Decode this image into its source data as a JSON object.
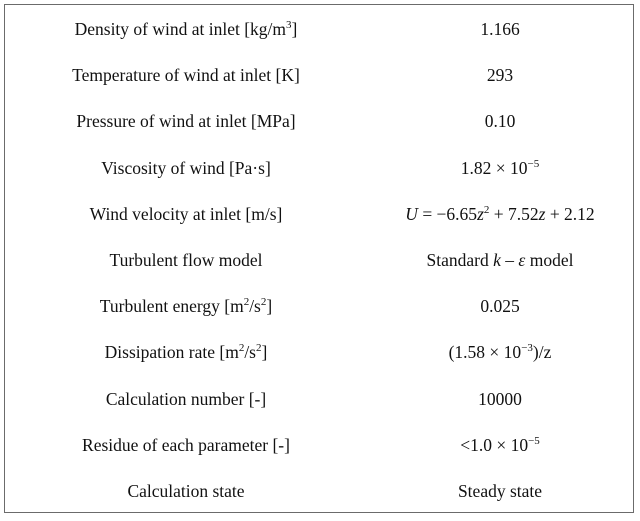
{
  "table": {
    "rows": [
      {
        "param": "Density of wind at inlet [kg/m",
        "param_sup": "3",
        "param_tail": "]",
        "value": "1.166"
      },
      {
        "param": "Temperature of wind at inlet [K]",
        "value": "293"
      },
      {
        "param": "Pressure of wind at inlet [MPa]",
        "value": "0.10"
      },
      {
        "param": "Viscosity of wind [Pa·s]",
        "value": "1.82 × 10",
        "value_sup": "−5"
      },
      {
        "param": "Wind velocity at inlet [m/s]",
        "value_parts": {
          "u": "U",
          "eq1": " = −6.65",
          "z1": "z",
          "sup1": "2",
          "eq2": " + 7.52",
          "z2": "z",
          "eq3": " + 2.12"
        }
      },
      {
        "param": "Turbulent flow model",
        "value_parts": {
          "pre": "Standard ",
          "k": "k",
          "dash": " – ",
          "eps": "ε",
          "post": " model"
        }
      },
      {
        "param": "Turbulent energy [m",
        "param_sup": "2",
        "param_mid": "/s",
        "param_sup2": "2",
        "param_tail": "]",
        "value": "0.025"
      },
      {
        "param": "Dissipation rate [m",
        "param_sup": "2",
        "param_mid": "/s",
        "param_sup2": "2",
        "param_tail": "]",
        "value": "(1.58 × 10",
        "value_sup": "−3",
        "value_tail": ")/z"
      },
      {
        "param": "Calculation number [-]",
        "value": "10000"
      },
      {
        "param": "Residue of each parameter [-]",
        "value": "<1.0 × 10",
        "value_sup": "−5"
      },
      {
        "param": "Calculation state",
        "value": "Steady state"
      }
    ]
  }
}
